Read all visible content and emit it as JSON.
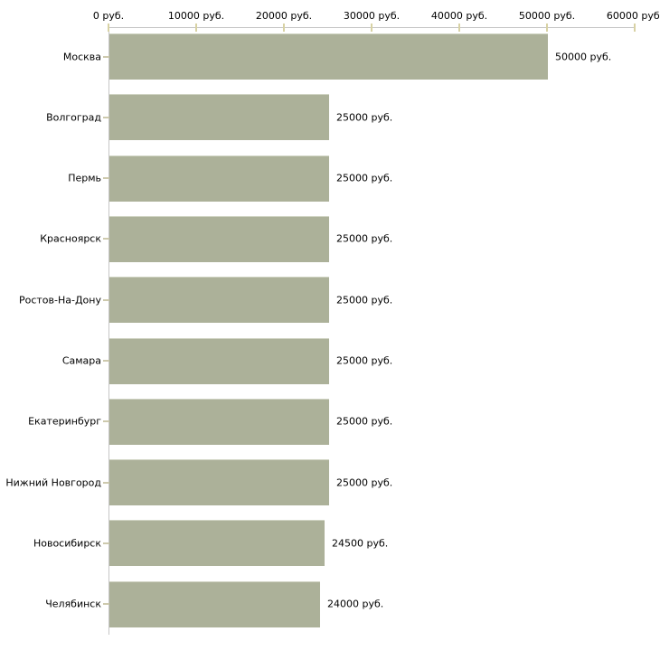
{
  "chart_data": {
    "type": "bar",
    "orientation": "horizontal",
    "title": "",
    "xlabel": "",
    "ylabel": "",
    "unit": "руб.",
    "grid": false,
    "legend": null,
    "xlim": [
      0,
      60000
    ],
    "categories": [
      "Москва",
      "Волгоград",
      "Пермь",
      "Красноярск",
      "Ростов-На-Дону",
      "Самара",
      "Екатеринбург",
      "Нижний Новгород",
      "Новосибирск",
      "Челябинск"
    ],
    "values": [
      50000,
      25000,
      25000,
      25000,
      25000,
      25000,
      25000,
      25000,
      24500,
      24000
    ],
    "bar_value_labels": [
      "50000 руб.",
      "25000 руб.",
      "25000 руб.",
      "25000 руб.",
      "25000 руб.",
      "25000 руб.",
      "25000 руб.",
      "25000 руб.",
      "24500 руб.",
      "24000 руб."
    ],
    "x_ticks": [
      {
        "value": 0,
        "label": "0 руб."
      },
      {
        "value": 10000,
        "label": "10000 руб."
      },
      {
        "value": 20000,
        "label": "20000 руб."
      },
      {
        "value": 30000,
        "label": "30000 руб."
      },
      {
        "value": 40000,
        "label": "40000 руб."
      },
      {
        "value": 50000,
        "label": "50000 руб."
      },
      {
        "value": 60000,
        "label": "60000 руб."
      }
    ],
    "colors": {
      "bar_fill": "#acb199",
      "bar_top_edge": "#cfd3c2",
      "axis_line": "#c5c5c5",
      "x_tick_mark": "#d8d2a4",
      "category_tick_mark": "#cdc9ad",
      "label_text": "#000000",
      "background": "#ffffff"
    }
  }
}
